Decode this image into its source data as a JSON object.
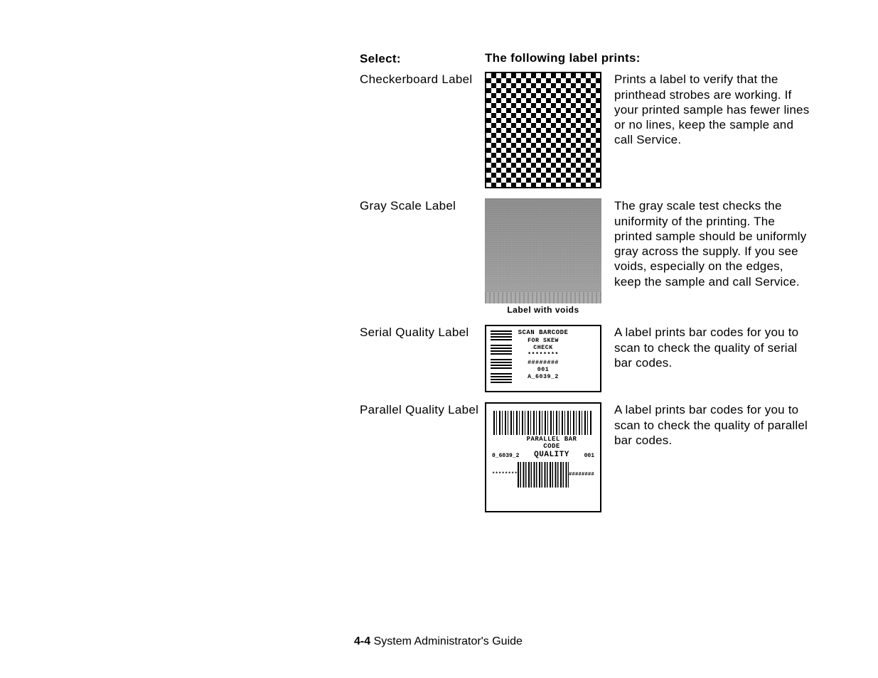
{
  "header": {
    "select": "Select:",
    "following": "The following label prints:"
  },
  "rows": {
    "checker": {
      "label": "Checkerboard Label",
      "desc": "Prints a label to verify that the printhead strobes are working. If your printed sample has fewer lines or no lines, keep the sample and call Service."
    },
    "gray": {
      "label": "Gray Scale Label",
      "caption": "Label with voids",
      "desc": "The gray scale test checks the uniformity of the printing.  The printed sample should be uniformly gray across the supply.  If you see voids, especially on the edges, keep the sample and call Service."
    },
    "serial": {
      "label": "Serial Quality Label",
      "desc": "A label prints bar codes for you to scan to check the quality of serial bar codes.",
      "sample": {
        "line1": "SCAN BARCODE",
        "line2": "FOR SKEW",
        "line3": "CHECK",
        "line4": "********",
        "line5": "########",
        "line6": "001",
        "line7": "A_6039_2"
      }
    },
    "parallel": {
      "label": "Parallel Quality Label",
      "desc": "A label prints bar codes for you to scan to check the quality of parallel bar codes.",
      "sample": {
        "left_code": "0_6039_2",
        "mid_top": "PARALLEL BAR CODE",
        "mid_bottom": "QUALITY",
        "right_code": "001",
        "stars": "********",
        "hashes": "########"
      }
    }
  },
  "footer": {
    "page": "4-4",
    "title": " System Administrator's Guide"
  },
  "colors": {
    "text": "#000000",
    "bg": "#ffffff",
    "gray": "#9a9a9a"
  }
}
